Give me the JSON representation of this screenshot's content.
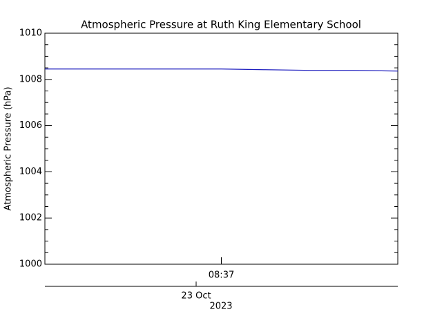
{
  "chart_data": {
    "type": "line",
    "title": "Atmospheric Pressure at Ruth King Elementary School",
    "ylabel": "Atmospheric Pressure (hPa)",
    "categories": [
      null,
      null,
      null,
      null,
      "08:37",
      null,
      null,
      null,
      null
    ],
    "series": [
      {
        "name": "Atmospheric Pressure",
        "color": "#1f1fbf",
        "values": [
          1008.45,
          1008.45,
          1008.45,
          1008.45,
          1008.45,
          1008.42,
          1008.39,
          1008.39,
          1008.36
        ]
      }
    ],
    "ylim": [
      1000,
      1010
    ],
    "yticks": [
      1000,
      1002,
      1004,
      1006,
      1008,
      1010
    ],
    "date_label": "23 Oct",
    "year_label": "2023"
  }
}
